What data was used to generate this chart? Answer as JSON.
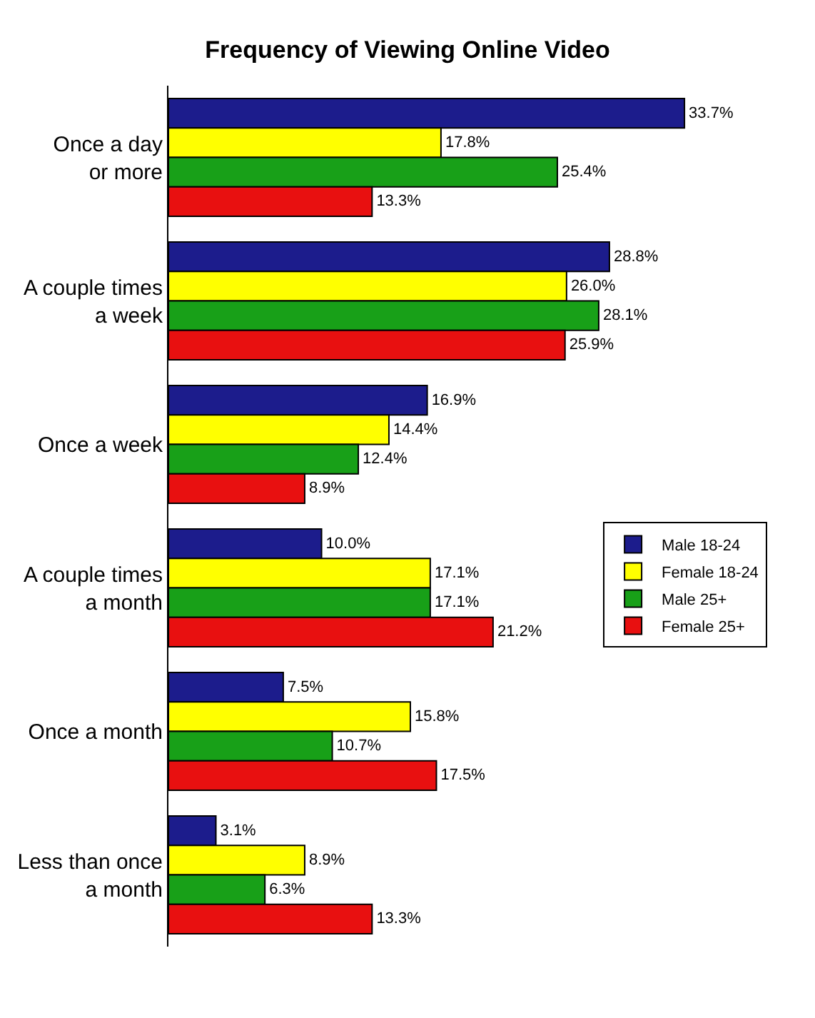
{
  "chart_data": {
    "type": "bar",
    "orientation": "horizontal",
    "title": "Frequency of Viewing Online Video",
    "categories": [
      "Once a day\nor more",
      "A couple times\na week",
      "Once a week",
      "A couple times\na month",
      "Once a month",
      "Less than once\na month"
    ],
    "series": [
      {
        "name": "Male 18-24",
        "color": "#1c1c8c",
        "values": [
          33.7,
          28.8,
          16.9,
          10.0,
          7.5,
          3.1
        ],
        "value_labels": [
          "33.7%",
          "28.8%",
          "16.9%",
          "10.0%",
          "7.5%",
          "3.1%"
        ]
      },
      {
        "name": "Female 18-24",
        "color": "#ffff00",
        "values": [
          17.8,
          26.0,
          14.4,
          17.1,
          15.8,
          8.9
        ],
        "value_labels": [
          "17.8%",
          "26.0%",
          "14.4%",
          "17.1%",
          "15.8%",
          "8.9%"
        ]
      },
      {
        "name": "Male 25+",
        "color": "#18a018",
        "values": [
          25.4,
          28.1,
          12.4,
          17.1,
          10.7,
          6.3
        ],
        "value_labels": [
          "25.4%",
          "28.1%",
          "12.4%",
          "17.1%",
          "10.7%",
          "6.3%"
        ]
      },
      {
        "name": "Female 25+",
        "color": "#e81010",
        "values": [
          13.3,
          25.9,
          8.9,
          21.2,
          17.5,
          13.3
        ],
        "value_labels": [
          "13.3%",
          "25.9%",
          "8.9%",
          "21.2%",
          "17.5%",
          "13.3%"
        ]
      }
    ],
    "legend": "right"
  }
}
